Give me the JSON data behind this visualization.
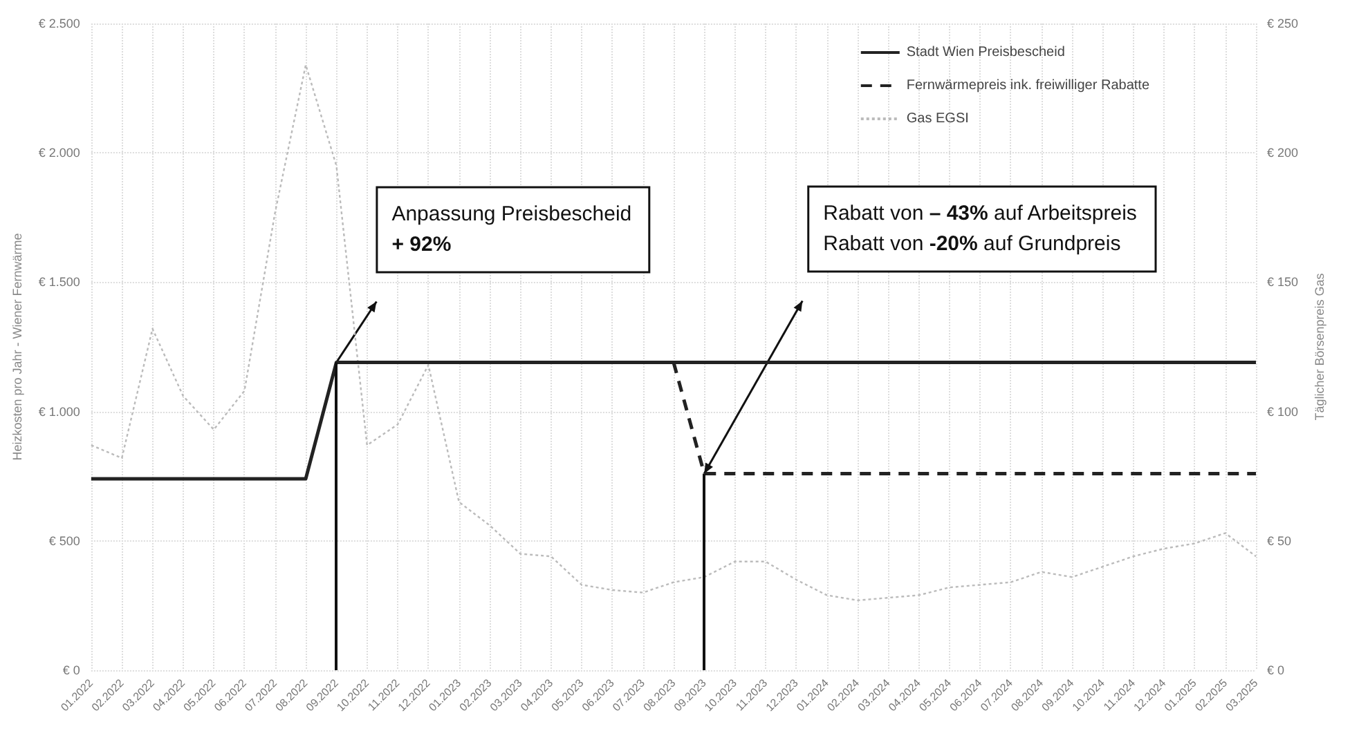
{
  "chart_data": {
    "type": "line",
    "categories": [
      "01.2022",
      "02.2022",
      "03.2022",
      "04.2022",
      "05.2022",
      "06.2022",
      "07.2022",
      "08.2022",
      "09.2022",
      "10.2022",
      "11.2022",
      "12.2022",
      "01.2023",
      "02.2023",
      "03.2023",
      "04.2023",
      "05.2023",
      "06.2023",
      "07.2023",
      "08.2023",
      "09.2023",
      "10.2023",
      "11.2023",
      "12.2023",
      "01.2024",
      "02.2024",
      "03.2024",
      "04.2024",
      "05.2024",
      "06.2024",
      "07.2024",
      "08.2024",
      "09.2024",
      "10.2024",
      "11.2024",
      "12.2024",
      "01.2025",
      "02.2025",
      "03.2025"
    ],
    "series": [
      {
        "name": "Stadt Wien Preisbescheid",
        "color": "#222222",
        "line_style": "solid",
        "values": [
          740,
          740,
          740,
          740,
          740,
          740,
          740,
          740,
          1190,
          1190,
          1190,
          1190,
          1190,
          1190,
          1190,
          1190,
          1190,
          1190,
          1190,
          1190,
          1190,
          1190,
          1190,
          1190,
          1190,
          1190,
          1190,
          1190,
          1190,
          1190,
          1190,
          1190,
          1190,
          1190,
          1190,
          1190,
          1190,
          1190,
          1190
        ]
      },
      {
        "name": "Fernwärmepreis ink. freiwilliger Rabatte",
        "color": "#222222",
        "line_style": "dashed",
        "values": [
          null,
          null,
          null,
          null,
          null,
          null,
          null,
          null,
          null,
          null,
          null,
          null,
          null,
          null,
          null,
          null,
          null,
          null,
          null,
          1190,
          760,
          760,
          760,
          760,
          760,
          760,
          760,
          760,
          760,
          760,
          760,
          760,
          760,
          760,
          760,
          760,
          760,
          760,
          760
        ]
      },
      {
        "name": "Gas EGSI",
        "color": "#bbbbbb",
        "line_style": "dotted",
        "axis": "y2",
        "values": [
          87,
          82,
          132,
          106,
          93,
          108,
          177,
          234,
          195,
          87,
          95,
          118,
          65,
          56,
          45,
          44,
          33,
          31,
          30,
          34,
          36,
          42,
          42,
          35,
          29,
          27,
          28,
          29,
          32,
          33,
          34,
          38,
          36,
          40,
          44,
          47,
          49,
          53,
          44
        ]
      }
    ],
    "ylabel": "Heizkosten pro Jahr - Wiener Fernwärme",
    "y2label": "Täglicher Börsenpreis Gas",
    "ylim": [
      0,
      2500
    ],
    "yticks": [
      {
        "value": 0,
        "label": "€ 0"
      },
      {
        "value": 500,
        "label": "€ 500"
      },
      {
        "value": 1000,
        "label": "€ 1.000"
      },
      {
        "value": 1500,
        "label": "€ 1.500"
      },
      {
        "value": 2000,
        "label": "€ 2.000"
      },
      {
        "value": 2500,
        "label": "€ 2.500"
      }
    ],
    "y2lim": [
      0,
      250
    ],
    "y2ticks": [
      {
        "value": 0,
        "label": "€ 0"
      },
      {
        "value": 50,
        "label": "€ 50"
      },
      {
        "value": 100,
        "label": "€ 100"
      },
      {
        "value": 150,
        "label": "€ 150"
      },
      {
        "value": 200,
        "label": "€ 200"
      },
      {
        "value": 250,
        "label": "€ 250"
      }
    ],
    "ref_lines": [
      {
        "axis": "x",
        "value": "09.2022",
        "color": "#111111"
      },
      {
        "axis": "x",
        "value": "09.2023",
        "color": "#111111"
      }
    ],
    "annotations": [
      "Anpassung Preisbescheid\n+ 92%",
      "Rabatt von – 43% auf Arbeitspreis\nRabatt von -20% auf Grundpreis"
    ],
    "grid": true,
    "legend": "top right",
    "marker": "none"
  }
}
